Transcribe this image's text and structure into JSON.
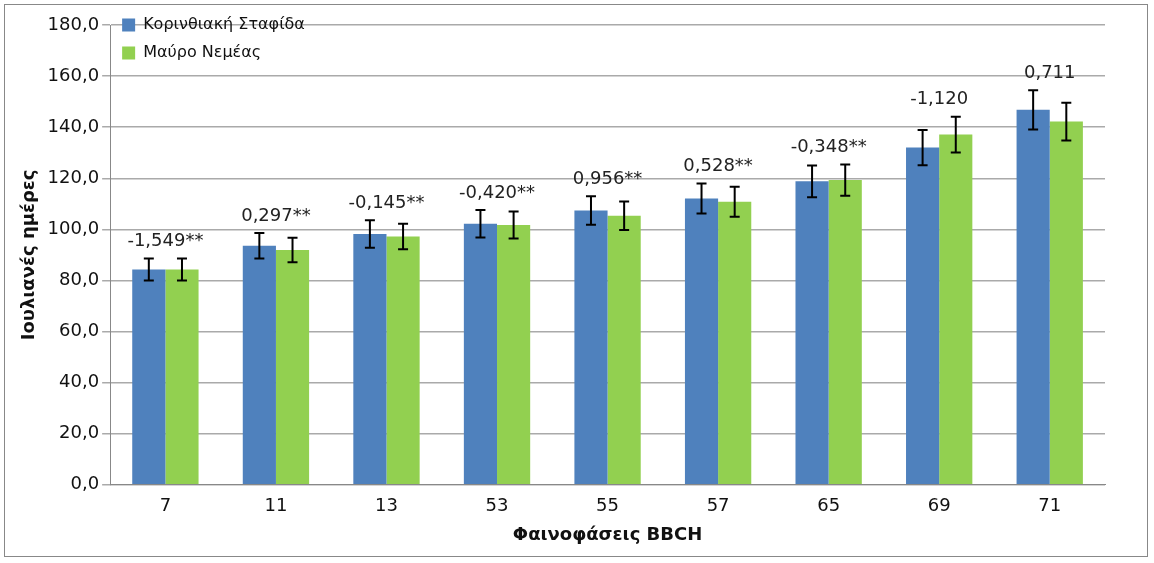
{
  "chart_data": {
    "type": "bar",
    "xlabel": "Φαινοφάσεις BBCH",
    "ylabel": "Ιουλιανές ημέρες",
    "categories": [
      "7",
      "11",
      "13",
      "53",
      "55",
      "57",
      "65",
      "69",
      "71"
    ],
    "series": [
      {
        "name": "Κορινθιακή Σταφίδα",
        "color": "#4f81bd",
        "values": [
          84.3,
          93.6,
          98.2,
          102.2,
          107.4,
          112.1,
          118.8,
          132.0,
          146.8
        ],
        "errors": [
          4.3,
          5.0,
          5.4,
          5.4,
          5.6,
          5.9,
          6.2,
          6.9,
          7.7
        ]
      },
      {
        "name": "Μαύρο Νεμέας",
        "color": "#92d050",
        "values": [
          84.3,
          91.9,
          97.2,
          101.7,
          105.3,
          110.8,
          119.3,
          137.1,
          142.2
        ],
        "errors": [
          4.3,
          4.8,
          5.0,
          5.3,
          5.6,
          5.9,
          6.1,
          7.0,
          7.4
        ]
      }
    ],
    "ylim": [
      0,
      180
    ],
    "yticks": [
      {
        "value": 0,
        "label": "0,0"
      },
      {
        "value": 20,
        "label": "20,0"
      },
      {
        "value": 40,
        "label": "40,0"
      },
      {
        "value": 60,
        "label": "60,0"
      },
      {
        "value": 80,
        "label": "80,0"
      },
      {
        "value": 100,
        "label": "100,0"
      },
      {
        "value": 120,
        "label": "120,0"
      },
      {
        "value": 140,
        "label": "140,0"
      },
      {
        "value": 160,
        "label": "160,0"
      },
      {
        "value": 180,
        "label": "180,0"
      }
    ],
    "grid": "y",
    "legend": "top left",
    "annotations": [
      "-1,549**",
      "0,297**",
      "-0,145**",
      "-0,420**",
      "0,956**",
      "0,528**",
      "-0,348**",
      "-1,120",
      "0,711"
    ]
  }
}
